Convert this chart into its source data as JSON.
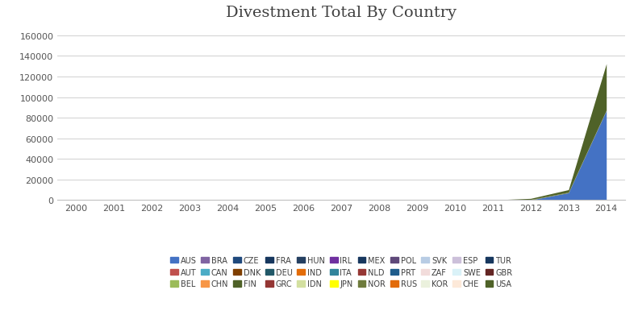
{
  "title": "Divestment Total By Country",
  "years": [
    2000,
    2001,
    2002,
    2003,
    2004,
    2005,
    2006,
    2007,
    2008,
    2009,
    2010,
    2011,
    2012,
    2013,
    2014
  ],
  "countries": [
    "AUS",
    "AUT",
    "BEL",
    "BRA",
    "CAN",
    "CHN",
    "CZE",
    "DNK",
    "FIN",
    "FRA",
    "DEU",
    "GRC",
    "HUN",
    "IND",
    "IDN",
    "IRL",
    "ITA",
    "JPN",
    "MEX",
    "NLD",
    "NOR",
    "POL",
    "PRT",
    "RUS",
    "SVK",
    "ZAF",
    "KOR",
    "ESP",
    "SWE",
    "CHE",
    "TUR",
    "GBR",
    "USA"
  ],
  "colors": {
    "AUS": "#4472C4",
    "AUT": "#C0504D",
    "BEL": "#9BBB59",
    "BRA": "#8064A2",
    "CAN": "#4BACC6",
    "CHN": "#F79646",
    "CZE": "#1F497D",
    "DNK": "#7F3F00",
    "FIN": "#4F6228",
    "FRA": "#17375E",
    "DEU": "#215868",
    "GRC": "#943634",
    "HUN": "#254061",
    "IND": "#E36C09",
    "IDN": "#D3E0A0",
    "IRL": "#7030A0",
    "ITA": "#31849B",
    "JPN": "#FFFF00",
    "MEX": "#17375E",
    "NLD": "#953734",
    "NOR": "#6E7B3C",
    "POL": "#5F497A",
    "PRT": "#1F5C8B",
    "RUS": "#E26B0A",
    "SVK": "#B8CCE4",
    "ZAF": "#F2DCDB",
    "KOR": "#EBF1DD",
    "ESP": "#CCC0DA",
    "SWE": "#DAF2F8",
    "CHE": "#FDE9D9",
    "TUR": "#17375E",
    "GBR": "#632523",
    "USA": "#4F6228"
  },
  "data": {
    "AUS": [
      0,
      0,
      0,
      0,
      0,
      0,
      0,
      0,
      0,
      0,
      0,
      0,
      0,
      7000,
      87000
    ],
    "AUT": [
      0,
      0,
      0,
      0,
      0,
      0,
      0,
      0,
      0,
      0,
      0,
      0,
      0,
      0,
      0
    ],
    "BEL": [
      0,
      0,
      0,
      0,
      0,
      0,
      0,
      0,
      0,
      0,
      0,
      0,
      0,
      0,
      0
    ],
    "BRA": [
      0,
      0,
      0,
      0,
      0,
      0,
      0,
      0,
      0,
      0,
      0,
      0,
      0,
      0,
      0
    ],
    "CAN": [
      0,
      0,
      0,
      0,
      0,
      0,
      0,
      0,
      0,
      0,
      0,
      0,
      0,
      0,
      0
    ],
    "CHN": [
      0,
      0,
      0,
      0,
      0,
      0,
      0,
      0,
      0,
      0,
      0,
      0,
      0,
      0,
      0
    ],
    "CZE": [
      0,
      0,
      0,
      0,
      0,
      0,
      0,
      0,
      0,
      0,
      0,
      0,
      0,
      0,
      0
    ],
    "DNK": [
      0,
      0,
      0,
      0,
      0,
      0,
      0,
      0,
      0,
      0,
      0,
      0,
      0,
      0,
      0
    ],
    "FIN": [
      0,
      0,
      0,
      0,
      0,
      0,
      0,
      0,
      0,
      0,
      0,
      0,
      0,
      0,
      0
    ],
    "FRA": [
      0,
      0,
      0,
      0,
      0,
      0,
      0,
      0,
      0,
      0,
      0,
      0,
      0,
      0,
      0
    ],
    "DEU": [
      0,
      0,
      0,
      0,
      0,
      0,
      0,
      0,
      0,
      0,
      0,
      0,
      0,
      0,
      0
    ],
    "GRC": [
      0,
      0,
      0,
      0,
      0,
      0,
      0,
      0,
      0,
      0,
      0,
      0,
      0,
      0,
      0
    ],
    "HUN": [
      0,
      0,
      0,
      0,
      0,
      0,
      0,
      0,
      0,
      0,
      0,
      0,
      0,
      0,
      0
    ],
    "IND": [
      0,
      0,
      0,
      0,
      0,
      0,
      0,
      0,
      0,
      0,
      0,
      0,
      0,
      0,
      0
    ],
    "IDN": [
      0,
      0,
      0,
      0,
      0,
      0,
      0,
      0,
      0,
      0,
      0,
      0,
      0,
      0,
      0
    ],
    "IRL": [
      0,
      0,
      0,
      0,
      0,
      0,
      0,
      0,
      0,
      0,
      0,
      0,
      0,
      0,
      0
    ],
    "ITA": [
      0,
      0,
      0,
      0,
      0,
      0,
      0,
      0,
      0,
      0,
      0,
      0,
      0,
      0,
      0
    ],
    "JPN": [
      0,
      0,
      0,
      0,
      0,
      0,
      0,
      0,
      0,
      0,
      0,
      0,
      0,
      0,
      0
    ],
    "MEX": [
      0,
      0,
      0,
      0,
      0,
      0,
      0,
      0,
      0,
      0,
      0,
      0,
      0,
      0,
      0
    ],
    "NLD": [
      0,
      0,
      0,
      0,
      0,
      0,
      0,
      0,
      0,
      0,
      0,
      0,
      0,
      0,
      0
    ],
    "NOR": [
      0,
      0,
      0,
      0,
      0,
      0,
      0,
      0,
      0,
      0,
      0,
      0,
      500,
      500,
      500
    ],
    "POL": [
      0,
      0,
      0,
      0,
      0,
      0,
      0,
      0,
      0,
      0,
      0,
      0,
      0,
      0,
      0
    ],
    "PRT": [
      0,
      0,
      0,
      0,
      0,
      0,
      0,
      0,
      0,
      0,
      0,
      0,
      0,
      0,
      0
    ],
    "RUS": [
      0,
      0,
      0,
      0,
      0,
      0,
      0,
      0,
      0,
      0,
      0,
      0,
      0,
      0,
      0
    ],
    "SVK": [
      0,
      0,
      0,
      0,
      0,
      0,
      0,
      0,
      0,
      0,
      0,
      0,
      0,
      0,
      0
    ],
    "ZAF": [
      0,
      0,
      0,
      0,
      0,
      0,
      0,
      0,
      0,
      0,
      0,
      0,
      0,
      0,
      0
    ],
    "KOR": [
      0,
      0,
      0,
      0,
      0,
      0,
      0,
      0,
      0,
      0,
      0,
      0,
      0,
      0,
      0
    ],
    "ESP": [
      0,
      0,
      0,
      0,
      0,
      0,
      0,
      0,
      0,
      0,
      0,
      0,
      0,
      0,
      0
    ],
    "SWE": [
      0,
      0,
      0,
      0,
      0,
      0,
      0,
      0,
      0,
      0,
      0,
      0,
      0,
      0,
      0
    ],
    "CHE": [
      0,
      0,
      0,
      0,
      0,
      0,
      0,
      0,
      0,
      0,
      0,
      0,
      0,
      0,
      0
    ],
    "TUR": [
      0,
      0,
      0,
      0,
      0,
      0,
      0,
      0,
      0,
      0,
      0,
      0,
      0,
      0,
      0
    ],
    "GBR": [
      0,
      0,
      0,
      0,
      0,
      0,
      0,
      0,
      0,
      0,
      0,
      0,
      0,
      0,
      0
    ],
    "USA": [
      0,
      0,
      0,
      0,
      0,
      0,
      0,
      0,
      0,
      0,
      0,
      0,
      1000,
      2500,
      45000
    ]
  },
  "ylim": [
    0,
    170000
  ],
  "yticks": [
    0,
    20000,
    40000,
    60000,
    80000,
    100000,
    120000,
    140000,
    160000
  ],
  "background_color": "#FFFFFF",
  "title_fontsize": 14,
  "legend_rows": [
    [
      "AUS",
      "AUT",
      "BEL",
      "BRA",
      "CAN",
      "CHN",
      "CZE",
      "DNK",
      "FIN",
      "FRA",
      "DEU"
    ],
    [
      "GRC",
      "HUN",
      "IND",
      "IDN",
      "IRL",
      "ITA",
      "JPN",
      "MEX",
      "NLD",
      "NOR",
      "POL"
    ],
    [
      "PRT",
      "RUS",
      "SVK",
      "ZAF",
      "KOR",
      "ESP",
      "SWE",
      "CHE",
      "TUR",
      "GBR",
      "USA"
    ]
  ]
}
